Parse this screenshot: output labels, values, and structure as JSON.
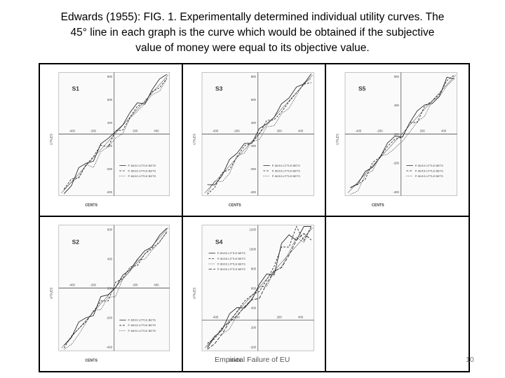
{
  "slide": {
    "title_lines": [
      "Edwards (1955): FIG. 1. Experimentally determined individual utility curves. The",
      "45° line in each graph is the curve which would be obtained if the subjective",
      "value of money were equal to its objective value."
    ],
    "footer": "Empirical Failure of EU",
    "page_number": "10"
  },
  "panels": [
    {
      "label": "S1",
      "xlabel": "CENTS",
      "ylabel": "UTILES",
      "ticks_x": [
        "-400",
        "-200",
        "200",
        "400"
      ],
      "ticks_y": [
        "800",
        "600",
        "400",
        "200",
        "-200",
        "-400"
      ],
      "legend": [
        "P. 80/10 LITTLE BETS",
        "P. 80/15 LITTLE BETS",
        "P. 80/10 LITTLE BETS"
      ]
    },
    {
      "label": "S3",
      "xlabel": "CENTS",
      "ylabel": "UTILES",
      "ticks_x": [
        "-400",
        "-200",
        "200",
        "400"
      ],
      "ticks_y": [
        "800",
        "600",
        "400",
        "200",
        "-200",
        "-400"
      ],
      "legend": [
        "P. 80/10 LITTLE BETS",
        "P. 80/15 LITTLE BETS",
        "P. 80/10 LITTLE BETS"
      ]
    },
    {
      "label": "S5",
      "xlabel": "CENTS",
      "ylabel": "UTILES",
      "ticks_x": [
        "-400",
        "-200",
        "200",
        "400"
      ],
      "ticks_y": [
        "600",
        "400",
        "200",
        "-200",
        "-400"
      ],
      "legend": [
        "P. 80/10 LITTLE BETS",
        "P. 80/15 LITTLE BETS",
        "P. 80/10 LITTLE BETS"
      ]
    },
    {
      "label": "S2",
      "xlabel": "CENTS",
      "ylabel": "UTILES",
      "ticks_x": [
        "-400",
        "-200",
        "200",
        "400"
      ],
      "ticks_y": [
        "600",
        "400",
        "200",
        "-200",
        "-400"
      ],
      "legend": [
        "P. 80/10 LITTLE BETS",
        "P. 80/15 LITTLE BETS",
        "P. 80/10 LITTLE BETS"
      ]
    },
    {
      "label": "S4",
      "xlabel": "CENTS",
      "ylabel": "UTILES",
      "ticks_x": [
        "-400",
        "-200",
        "200",
        "400"
      ],
      "ticks_y": [
        "1200",
        "1000",
        "800",
        "600",
        "400",
        "200",
        "-200"
      ],
      "legend": [
        "P. 80/10 LITTLE BETS",
        "P. 80/15 LITTLE BETS",
        "P. 80/10 LITTLE BETS",
        "P. 80/10 LITTLE BETS"
      ]
    }
  ]
}
